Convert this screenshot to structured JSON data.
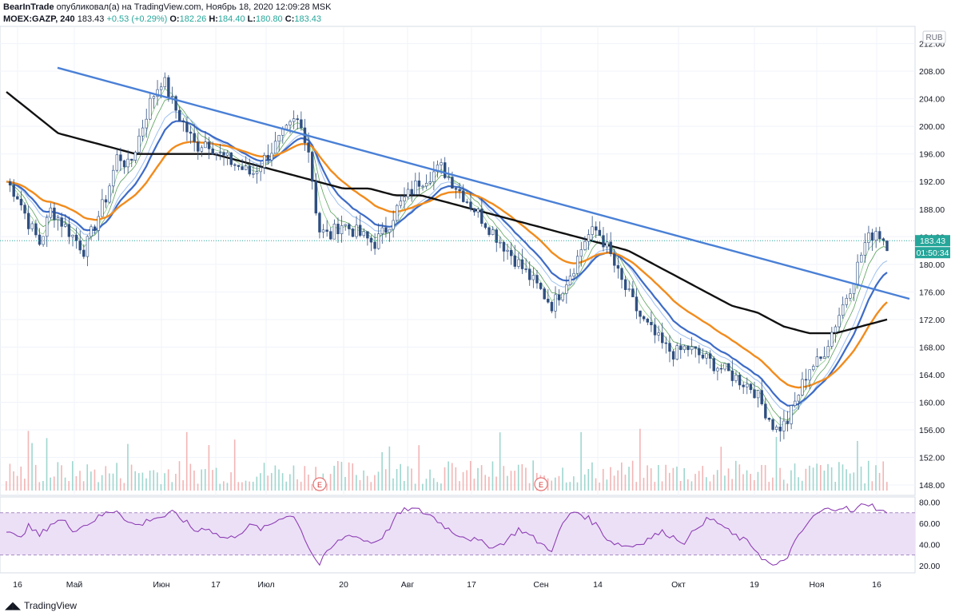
{
  "header": {
    "publisher": "BearInTrade",
    "published_text": "опубликовал(а) на TradingView.com, Ноябрь 18, 2020 12:09:28 MSK",
    "symbol": "MOEX:GAZP, 240",
    "last": "183.43",
    "change": "+0.53 (+0.29%)",
    "o_label": "O:",
    "o": "182.26",
    "h_label": "H:",
    "h": "184.40",
    "l_label": "L:",
    "l": "180.80",
    "c_label": "C:",
    "c": "183.43"
  },
  "footer": {
    "brand": "TradingView"
  },
  "chart_data": {
    "type": "candlestick",
    "currency": "RUB",
    "last_price": 183.43,
    "last_price_label": "183.43",
    "countdown_label": "01:50:34",
    "ylim": [
      146.5,
      214.5
    ],
    "y_ticks": [
      "212.00",
      "208.00",
      "204.00",
      "200.00",
      "196.00",
      "192.00",
      "188.00",
      "184.00",
      "180.00",
      "176.00",
      "172.00",
      "168.00",
      "164.00",
      "160.00",
      "156.00",
      "152.00",
      "148.00"
    ],
    "x_ticks": [
      "16",
      "Май",
      "Июн",
      "17",
      "Июл",
      "20",
      "Авг",
      "17",
      "Сен",
      "14",
      "Окт",
      "19",
      "Ноя",
      "16"
    ],
    "earnings_markers": [
      "E",
      "E"
    ],
    "price_path": [
      192,
      190,
      186,
      183,
      188,
      186,
      184,
      182,
      186,
      190,
      196,
      194,
      199,
      204,
      207,
      203,
      200,
      197,
      198,
      196,
      195,
      194,
      193,
      195,
      197,
      199,
      201,
      198,
      185,
      184,
      186,
      185,
      184,
      183,
      185,
      188,
      190,
      192,
      193,
      194,
      192,
      190,
      188,
      186,
      184,
      182,
      180,
      178,
      176,
      174,
      177,
      180,
      184,
      185,
      182,
      178,
      175,
      172,
      170,
      168,
      167,
      168,
      167,
      166,
      165,
      164,
      163,
      162,
      159,
      156,
      157,
      161,
      165,
      166,
      170,
      174,
      178,
      183,
      185,
      183
    ],
    "sma_long_path": [
      205,
      202,
      199,
      198,
      197,
      196,
      196,
      196,
      196,
      195,
      194,
      193,
      192,
      191,
      191,
      190,
      190,
      189,
      188,
      187,
      186,
      185,
      184,
      183,
      182,
      180,
      178,
      176,
      174,
      173,
      171,
      170,
      170,
      171,
      172
    ],
    "trendline": {
      "start": [
        0.06,
        208.5
      ],
      "end": [
        0.8,
        175
      ]
    },
    "rsi": {
      "levels": [
        70,
        30
      ],
      "y_ticks": [
        "80.00",
        "60.00",
        "40.00",
        "20.00"
      ],
      "ylim": [
        13,
        85
      ],
      "values": [
        52,
        46,
        57,
        48,
        60,
        63,
        54,
        58,
        64,
        70,
        73,
        60,
        58,
        65,
        66,
        70,
        62,
        52,
        57,
        48,
        45,
        52,
        58,
        54,
        61,
        68,
        65,
        40,
        20,
        35,
        45,
        50,
        44,
        42,
        50,
        67,
        74,
        72,
        68,
        60,
        52,
        48,
        44,
        40,
        38,
        45,
        55,
        48,
        40,
        35,
        62,
        72,
        66,
        58,
        44,
        40,
        38,
        42,
        48,
        52,
        46,
        42,
        58,
        64,
        60,
        50,
        45,
        38,
        25,
        18,
        28,
        46,
        62,
        71,
        74,
        76,
        70,
        80,
        75,
        68
      ]
    }
  }
}
